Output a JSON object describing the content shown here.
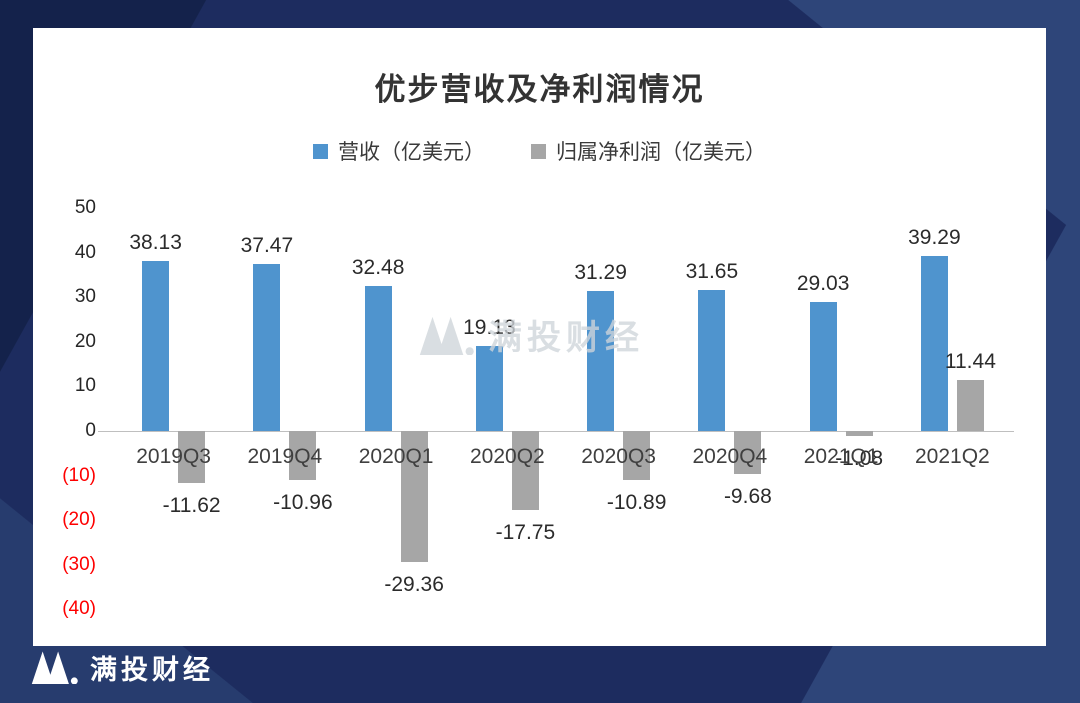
{
  "frame": {
    "background_color": "#1d2c5f",
    "panel_color": "#ffffff"
  },
  "chart_data": {
    "type": "bar",
    "title": "优步营收及净利润情况",
    "categories": [
      "2019Q3",
      "2019Q4",
      "2020Q1",
      "2020Q2",
      "2020Q3",
      "2020Q4",
      "2021Q1",
      "2021Q2"
    ],
    "series": [
      {
        "name": "营收（亿美元）",
        "color": "#4f94ce",
        "values": [
          38.13,
          37.47,
          32.48,
          19.13,
          31.29,
          31.65,
          29.03,
          39.29
        ]
      },
      {
        "name": "归属净利润（亿美元）",
        "color": "#a6a6a6",
        "values": [
          -11.62,
          -10.96,
          -29.36,
          -17.75,
          -10.89,
          -9.68,
          -1.08,
          11.44
        ]
      }
    ],
    "y_tick_labels": [
      "50",
      "40",
      "30",
      "20",
      "10",
      "0",
      "(10)",
      "(20)",
      "(30)",
      "(40)"
    ],
    "ylim": [
      -40,
      50
    ],
    "negative_tick_color": "#fe0000",
    "legend_position": "top",
    "grid": false
  },
  "watermark": {
    "text": "满投财经"
  },
  "footer": {
    "brand": "满投财经"
  }
}
